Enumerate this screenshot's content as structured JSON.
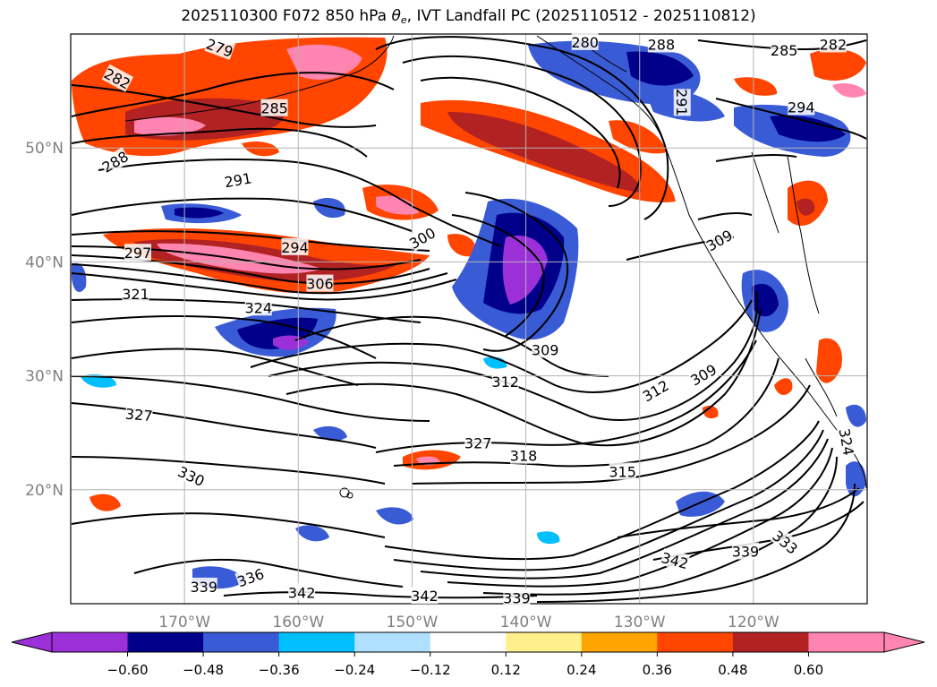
{
  "title": {
    "prefix": "2025110300 F072 850 hPa",
    "theta_symbol": "θ",
    "theta_subscript": "e",
    "suffix": ", IVT Landfall PC (2025110512 - 2025110812)"
  },
  "map": {
    "projection": "lat-lon",
    "lon_range": [
      -180,
      -110
    ],
    "lat_range": [
      10,
      60
    ],
    "lat_ticks": [
      {
        "value": 20,
        "label": "20°N"
      },
      {
        "value": 30,
        "label": "30°N"
      },
      {
        "value": 40,
        "label": "40°N"
      },
      {
        "value": 50,
        "label": "50°N"
      }
    ],
    "lon_ticks": [
      {
        "value": -170,
        "label": "170°W"
      },
      {
        "value": -160,
        "label": "160°W"
      },
      {
        "value": -150,
        "label": "150°W"
      },
      {
        "value": -140,
        "label": "140°W"
      },
      {
        "value": -130,
        "label": "130°W"
      },
      {
        "value": -120,
        "label": "120°W"
      }
    ],
    "grid": true,
    "tick_label_color": "#808080"
  },
  "contour_labels": [
    {
      "text": "279",
      "lon": -166.9,
      "lat": 58.8,
      "rot": 20
    },
    {
      "text": "282",
      "lon": -175.9,
      "lat": 56.1,
      "rot": 28
    },
    {
      "text": "285",
      "lon": -162.1,
      "lat": 53.5,
      "rot": 0
    },
    {
      "text": "288",
      "lon": -176.1,
      "lat": 48.8,
      "rot": -30
    },
    {
      "text": "291",
      "lon": -165.3,
      "lat": 47.2,
      "rot": -10
    },
    {
      "text": "294",
      "lon": -160.3,
      "lat": 41.3,
      "rot": 0
    },
    {
      "text": "297",
      "lon": -174.1,
      "lat": 40.8,
      "rot": 0
    },
    {
      "text": "300",
      "lon": -149.1,
      "lat": 42.1,
      "rot": -30
    },
    {
      "text": "306",
      "lon": -158.1,
      "lat": 38.1,
      "rot": 0
    },
    {
      "text": "321",
      "lon": -174.3,
      "lat": 37.2,
      "rot": 0
    },
    {
      "text": "324",
      "lon": -163.5,
      "lat": 36.0,
      "rot": 0
    },
    {
      "text": "309",
      "lon": -138.3,
      "lat": 32.3,
      "rot": 0
    },
    {
      "text": "312",
      "lon": -141.8,
      "lat": 29.5,
      "rot": 0
    },
    {
      "text": "312",
      "lon": -128.6,
      "lat": 28.7,
      "rot": -30
    },
    {
      "text": "309",
      "lon": -124.4,
      "lat": 30.1,
      "rot": -30
    },
    {
      "text": "309",
      "lon": -123.0,
      "lat": 41.9,
      "rot": -30
    },
    {
      "text": "327",
      "lon": -174.0,
      "lat": 26.6,
      "rot": 5
    },
    {
      "text": "327",
      "lon": -144.2,
      "lat": 24.1,
      "rot": 0
    },
    {
      "text": "318",
      "lon": -140.2,
      "lat": 23.0,
      "rot": 0
    },
    {
      "text": "315",
      "lon": -131.5,
      "lat": 21.6,
      "rot": 0
    },
    {
      "text": "330",
      "lon": -169.4,
      "lat": 21.2,
      "rot": 25
    },
    {
      "text": "336",
      "lon": -164.2,
      "lat": 12.3,
      "rot": -20
    },
    {
      "text": "339",
      "lon": -168.3,
      "lat": 11.5,
      "rot": 0
    },
    {
      "text": "342",
      "lon": -159.7,
      "lat": 11.0,
      "rot": 0
    },
    {
      "text": "342",
      "lon": -148.9,
      "lat": 10.7,
      "rot": 0
    },
    {
      "text": "339",
      "lon": -140.8,
      "lat": 10.5,
      "rot": 0
    },
    {
      "text": "342",
      "lon": -126.9,
      "lat": 13.8,
      "rot": 15
    },
    {
      "text": "339",
      "lon": -120.7,
      "lat": 14.6,
      "rot": 0
    },
    {
      "text": "333",
      "lon": -117.2,
      "lat": 15.4,
      "rot": 40
    },
    {
      "text": "324",
      "lon": -111.8,
      "lat": 24.2,
      "rot": 80
    },
    {
      "text": "294",
      "lon": -115.8,
      "lat": 53.6,
      "rot": 0
    },
    {
      "text": "285",
      "lon": -117.3,
      "lat": 58.6,
      "rot": 0
    },
    {
      "text": "282",
      "lon": -113.0,
      "lat": 59.1,
      "rot": 0
    },
    {
      "text": "288",
      "lon": -128.1,
      "lat": 59.1,
      "rot": 0
    },
    {
      "text": "280",
      "lon": -134.8,
      "lat": 59.3,
      "rot": 0
    },
    {
      "text": "291",
      "lon": -126.3,
      "lat": 54.0,
      "rot": 90
    }
  ],
  "colorbar": {
    "extend": "both",
    "colors": [
      "#9b30d9",
      "#00008b",
      "#3a5bd6",
      "#00bfff",
      "#b0e0ff",
      "#ffffff",
      "#fff08c",
      "#ffa500",
      "#ff4500",
      "#b22222",
      "#ff85b0"
    ],
    "tick_labels": [
      "−0.60",
      "−0.48",
      "−0.36",
      "−0.24",
      "−0.12",
      "0.12",
      "0.24",
      "0.36",
      "0.48",
      "0.60"
    ]
  }
}
